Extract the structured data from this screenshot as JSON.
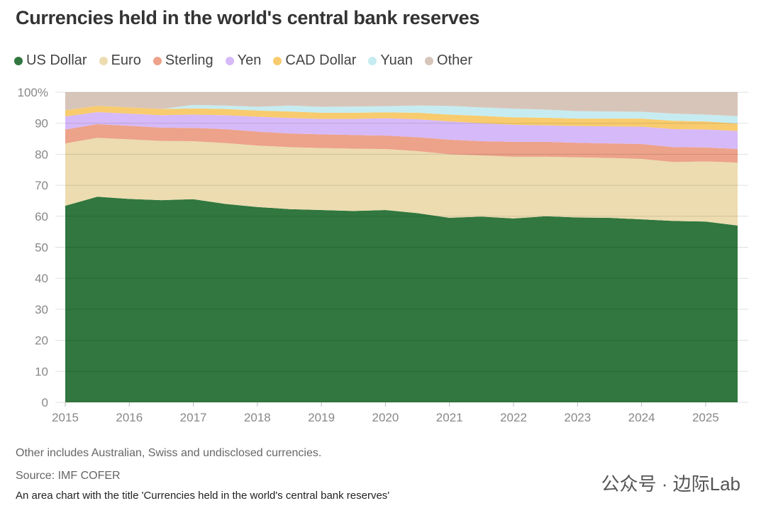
{
  "chart_data": {
    "type": "area",
    "stacked": true,
    "title": "Currencies held in the world's central bank reserves",
    "x": [
      2015,
      2015.5,
      2016,
      2016.5,
      2017,
      2017.5,
      2018,
      2018.5,
      2019,
      2019.5,
      2020,
      2020.5,
      2021,
      2021.5,
      2022,
      2022.5,
      2023,
      2023.5,
      2024,
      2024.5,
      2025,
      2025.5
    ],
    "xticks": [
      "2015",
      "2016",
      "2017",
      "2018",
      "2019",
      "2020",
      "2021",
      "2022",
      "2023",
      "2024",
      "2025"
    ],
    "yticks": [
      "0",
      "10",
      "20",
      "30",
      "40",
      "50",
      "60",
      "70",
      "80",
      "90",
      "100%"
    ],
    "ylim": [
      0,
      100
    ],
    "grid": true,
    "legend_position": "top-left",
    "series": [
      {
        "name": "US Dollar",
        "color": "#31773f",
        "values": [
          63.4,
          66.3,
          65.6,
          65.2,
          65.5,
          64,
          63,
          62.3,
          62,
          61.7,
          62,
          61,
          59.5,
          59.9,
          59.3,
          60,
          59.6,
          59.5,
          59,
          58.5,
          58.3,
          57
        ]
      },
      {
        "name": "Euro",
        "color": "#ecdcb0",
        "values": [
          20.1,
          19,
          19.2,
          19.1,
          18.7,
          19.6,
          19.8,
          20,
          20,
          20.1,
          19.7,
          20,
          20.5,
          19.7,
          19.9,
          19.2,
          19.4,
          19.3,
          19.5,
          19,
          19.4,
          20.3
        ]
      },
      {
        "name": "Sterling",
        "color": "#eda28a",
        "values": [
          4.5,
          4.4,
          4.4,
          4.3,
          4.3,
          4.5,
          4.5,
          4.4,
          4.4,
          4.4,
          4.3,
          4.5,
          4.7,
          4.6,
          4.8,
          4.8,
          4.7,
          4.7,
          4.8,
          4.8,
          4.5,
          4.4
        ]
      },
      {
        "name": "Yen",
        "color": "#d6b9f8",
        "values": [
          4.2,
          3.9,
          3.9,
          4.0,
          4.3,
          4.5,
          4.8,
          5.0,
          5.0,
          5.2,
          5.6,
          5.8,
          5.9,
          5.8,
          5.5,
          5.3,
          5.4,
          5.5,
          5.6,
          5.8,
          5.8,
          5.8
        ]
      },
      {
        "name": "CAD Dollar",
        "color": "#f8cb6e",
        "values": [
          2.0,
          2.0,
          2.0,
          2.0,
          2.0,
          2.0,
          2.0,
          2.1,
          2.0,
          2.0,
          1.9,
          2.1,
          2.2,
          2.4,
          2.4,
          2.5,
          2.4,
          2.5,
          2.6,
          2.7,
          2.6,
          2.4
        ]
      },
      {
        "name": "Yuan",
        "color": "#c6ecf1",
        "values": [
          0,
          0,
          0,
          0,
          1.1,
          1.1,
          1.2,
          1.9,
          1.9,
          2.0,
          2.0,
          2.3,
          2.8,
          2.7,
          2.8,
          2.6,
          2.4,
          2.3,
          2.2,
          2.3,
          2.2,
          2.4
        ]
      },
      {
        "name": "Other",
        "color": "#d8c5b9",
        "values": [
          5.8,
          4.4,
          4.9,
          5.4,
          4.1,
          4.3,
          4.7,
          4.3,
          4.7,
          4.6,
          4.5,
          4.3,
          4.4,
          4.9,
          5.3,
          5.6,
          6.1,
          6.2,
          6.3,
          6.9,
          7.2,
          7.7
        ]
      }
    ]
  },
  "notes": {
    "other": "Other includes Australian, Swiss and undisclosed currencies.",
    "source": "Source: IMF COFER",
    "alt": "An area chart with the title 'Currencies held in the world's central bank reserves'"
  },
  "watermark": "公众号 · 边际Lab"
}
